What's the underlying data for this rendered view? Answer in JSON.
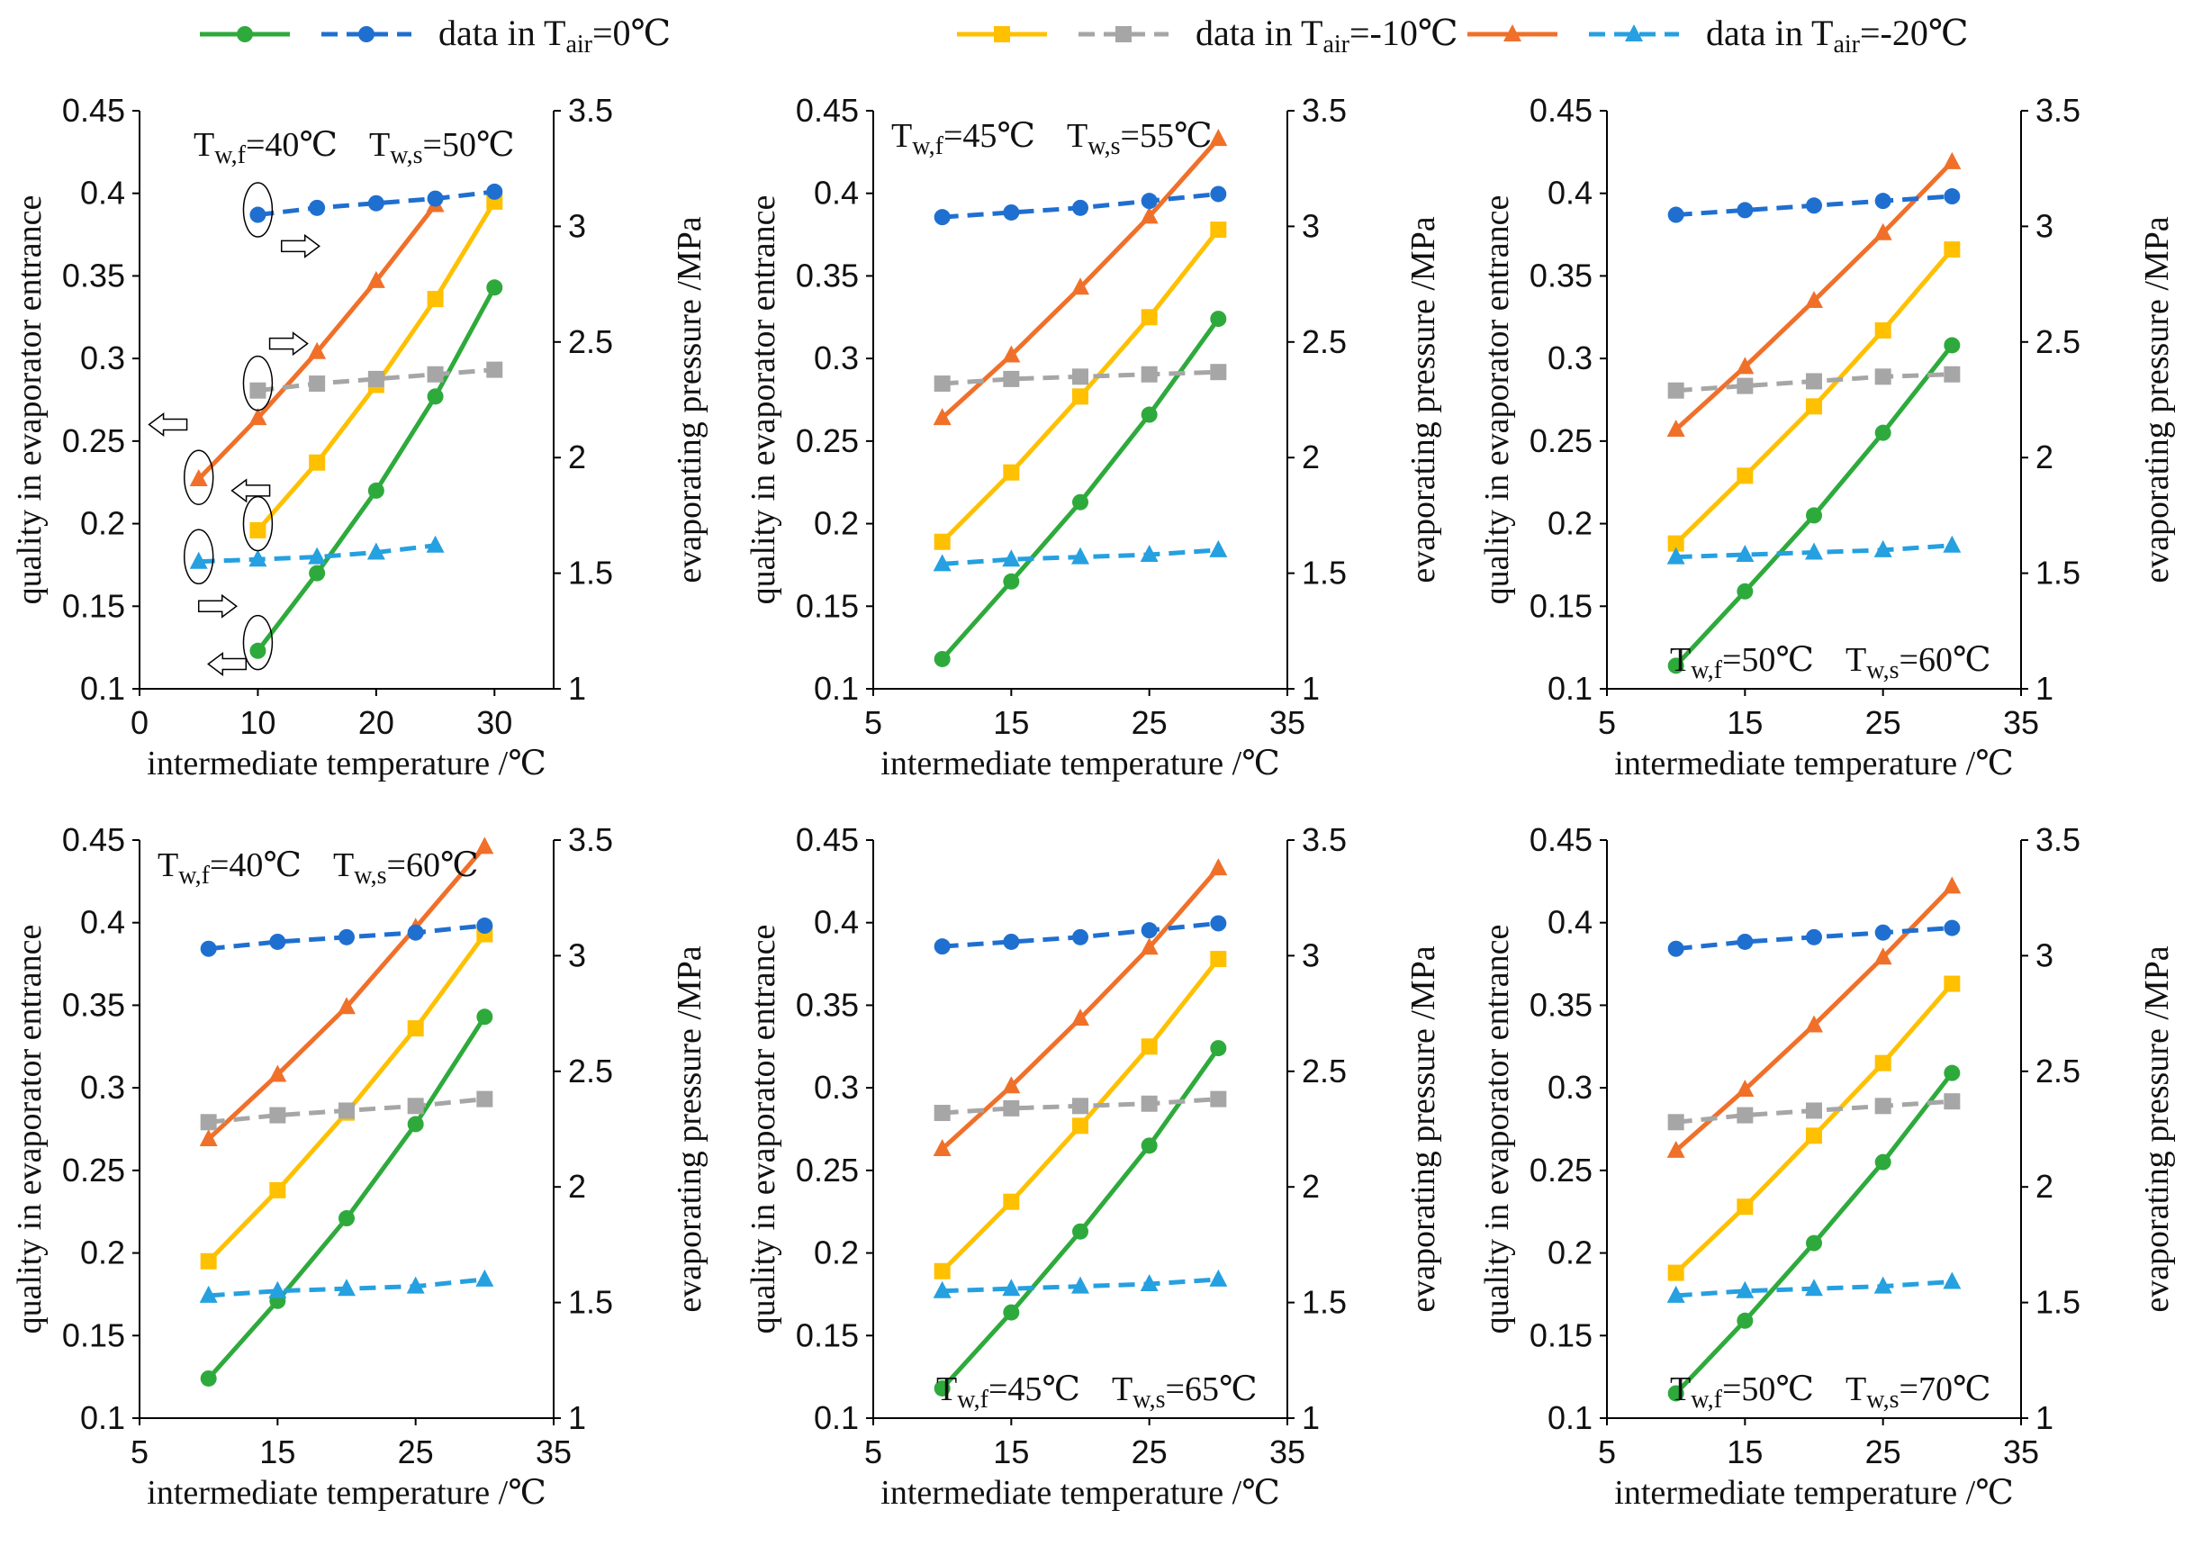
{
  "legend": {
    "entries": [
      {
        "label_prefix": "data in T",
        "label_sub": "air",
        "label_suffix": "=0℃",
        "quality_color": "#2eaa3c",
        "pressure_color": "#1f6fd0",
        "marker": "circle"
      },
      {
        "label_prefix": "data in T",
        "label_sub": "air",
        "label_suffix": "=-10℃",
        "quality_color": "#ffc000",
        "pressure_color": "#a6a6a6",
        "marker": "square"
      },
      {
        "label_prefix": "data in T",
        "label_sub": "air",
        "label_suffix": "=-20℃",
        "quality_color": "#f0702a",
        "pressure_color": "#25a0e0",
        "marker": "triangle"
      }
    ]
  },
  "chart_data": [
    {
      "type": "line",
      "title": "Tw,f=40℃ Tw,s=50℃",
      "annotation": {
        "tf_main": "T",
        "tf_sub": "w,f",
        "tf_val": "=40℃",
        "ts_main": "T",
        "ts_sub": "w,s",
        "ts_val": "=50℃",
        "position": "top-center"
      },
      "xlabel": "intermediate temperature /℃",
      "ylabel": "quality in evaporator entrance",
      "y2label": "evaporating pressure /MPa",
      "xlim": [
        0,
        35
      ],
      "xticks": [
        0,
        10,
        20,
        30
      ],
      "ylim": [
        0.1,
        0.45
      ],
      "yticks": [
        "0.1",
        "0.15",
        "0.2",
        "0.25",
        "0.3",
        "0.35",
        "0.4",
        "0.45"
      ],
      "y2lim": [
        1,
        3.5
      ],
      "y2ticks": [
        "1",
        "1.5",
        "2",
        "2.5",
        "3",
        "3.5"
      ],
      "has_arrows": true,
      "series": [
        {
          "name": "quality Tair=0℃",
          "axis": "left",
          "x": [
            10,
            15,
            20,
            25,
            30
          ],
          "values": [
            0.123,
            0.17,
            0.22,
            0.277,
            0.343
          ]
        },
        {
          "name": "quality Tair=-10℃",
          "axis": "left",
          "x": [
            10,
            15,
            20,
            25,
            30
          ],
          "values": [
            0.196,
            0.237,
            0.284,
            0.336,
            0.395
          ]
        },
        {
          "name": "quality Tair=-20℃",
          "axis": "left",
          "x": [
            5,
            10,
            15,
            20,
            25
          ],
          "values": [
            0.227,
            0.264,
            0.304,
            0.347,
            0.393
          ]
        },
        {
          "name": "pressure Tair=0℃",
          "axis": "right",
          "x": [
            10,
            15,
            20,
            25,
            30
          ],
          "values": [
            3.05,
            3.08,
            3.1,
            3.12,
            3.15
          ]
        },
        {
          "name": "pressure Tair=-10℃",
          "axis": "right",
          "x": [
            10,
            15,
            20,
            25,
            30
          ],
          "values": [
            2.29,
            2.32,
            2.34,
            2.36,
            2.38
          ]
        },
        {
          "name": "pressure Tair=-20℃",
          "axis": "right",
          "x": [
            5,
            10,
            15,
            20,
            25
          ],
          "values": [
            1.55,
            1.56,
            1.57,
            1.59,
            1.62
          ]
        }
      ]
    },
    {
      "type": "line",
      "title": "Tw,f=45℃ Tw,s=55℃",
      "annotation": {
        "tf_main": "T",
        "tf_sub": "w,f",
        "tf_val": "=45℃",
        "ts_main": "T",
        "ts_sub": "w,s",
        "ts_val": "=55℃",
        "position": "top-left"
      },
      "xlabel": "intermediate temperature /℃",
      "ylabel": "quality in evaporator entrance",
      "y2label": "evaporating pressure /MPa",
      "xlim": [
        5,
        35
      ],
      "xticks": [
        5,
        15,
        25,
        35
      ],
      "ylim": [
        0.1,
        0.45
      ],
      "yticks": [
        "0.1",
        "0.15",
        "0.2",
        "0.25",
        "0.3",
        "0.35",
        "0.4",
        "0.45"
      ],
      "y2lim": [
        1,
        3.5
      ],
      "y2ticks": [
        "1",
        "1.5",
        "2",
        "2.5",
        "3",
        "3.5"
      ],
      "has_arrows": false,
      "series": [
        {
          "name": "quality Tair=0℃",
          "axis": "left",
          "x": [
            10,
            15,
            20,
            25,
            30
          ],
          "values": [
            0.118,
            0.165,
            0.213,
            0.266,
            0.324
          ]
        },
        {
          "name": "quality Tair=-10℃",
          "axis": "left",
          "x": [
            10,
            15,
            20,
            25,
            30
          ],
          "values": [
            0.189,
            0.231,
            0.277,
            0.325,
            0.378
          ]
        },
        {
          "name": "quality Tair=-20℃",
          "axis": "left",
          "x": [
            10,
            15,
            20,
            25,
            30
          ],
          "values": [
            0.264,
            0.302,
            0.343,
            0.386,
            0.433
          ]
        },
        {
          "name": "pressure Tair=0℃",
          "axis": "right",
          "x": [
            10,
            15,
            20,
            25,
            30
          ],
          "values": [
            3.04,
            3.06,
            3.08,
            3.11,
            3.14
          ]
        },
        {
          "name": "pressure Tair=-10℃",
          "axis": "right",
          "x": [
            10,
            15,
            20,
            25,
            30
          ],
          "values": [
            2.32,
            2.34,
            2.35,
            2.36,
            2.37
          ]
        },
        {
          "name": "pressure Tair=-20℃",
          "axis": "right",
          "x": [
            10,
            15,
            20,
            25,
            30
          ],
          "values": [
            1.54,
            1.56,
            1.57,
            1.58,
            1.6
          ]
        }
      ]
    },
    {
      "type": "line",
      "title": "Tw,f=50℃ Tw,s=60℃",
      "annotation": {
        "tf_main": "T",
        "tf_sub": "w,f",
        "tf_val": "=50℃",
        "ts_main": "T",
        "ts_sub": "w,s",
        "ts_val": "=60℃",
        "position": "bottom-right"
      },
      "xlabel": "intermediate temperature /℃",
      "ylabel": "quality in evaporator entrance",
      "y2label": "evaporating pressure /MPa",
      "xlim": [
        5,
        35
      ],
      "xticks": [
        5,
        15,
        25,
        35
      ],
      "ylim": [
        0.1,
        0.45
      ],
      "yticks": [
        "0.1",
        "0.15",
        "0.2",
        "0.25",
        "0.3",
        "0.35",
        "0.4",
        "0.45"
      ],
      "y2lim": [
        1,
        3.5
      ],
      "y2ticks": [
        "1",
        "1.5",
        "2",
        "2.5",
        "3",
        "3.5"
      ],
      "has_arrows": false,
      "series": [
        {
          "name": "quality Tair=0℃",
          "axis": "left",
          "x": [
            10,
            15,
            20,
            25,
            30
          ],
          "values": [
            0.114,
            0.159,
            0.205,
            0.255,
            0.308
          ]
        },
        {
          "name": "quality Tair=-10℃",
          "axis": "left",
          "x": [
            10,
            15,
            20,
            25,
            30
          ],
          "values": [
            0.188,
            0.229,
            0.271,
            0.317,
            0.366
          ]
        },
        {
          "name": "quality Tair=-20℃",
          "axis": "left",
          "x": [
            10,
            15,
            20,
            25,
            30
          ],
          "values": [
            0.257,
            0.295,
            0.335,
            0.376,
            0.419
          ]
        },
        {
          "name": "pressure Tair=0℃",
          "axis": "right",
          "x": [
            10,
            15,
            20,
            25,
            30
          ],
          "values": [
            3.05,
            3.07,
            3.09,
            3.11,
            3.13
          ]
        },
        {
          "name": "pressure Tair=-10℃",
          "axis": "right",
          "x": [
            10,
            15,
            20,
            25,
            30
          ],
          "values": [
            2.29,
            2.31,
            2.33,
            2.35,
            2.36
          ]
        },
        {
          "name": "pressure Tair=-20℃",
          "axis": "right",
          "x": [
            10,
            15,
            20,
            25,
            30
          ],
          "values": [
            1.57,
            1.58,
            1.59,
            1.6,
            1.62
          ]
        }
      ]
    },
    {
      "type": "line",
      "title": "Tw,f=40℃ Tw,s=60℃",
      "annotation": {
        "tf_main": "T",
        "tf_sub": "w,f",
        "tf_val": "=40℃",
        "ts_main": "T",
        "ts_sub": "w,s",
        "ts_val": "=60℃",
        "position": "top-left"
      },
      "xlabel": "intermediate temperature /℃",
      "ylabel": "quality in evaporator entrance",
      "y2label": "evaporating pressure /MPa",
      "xlim": [
        5,
        35
      ],
      "xticks": [
        5,
        15,
        25,
        35
      ],
      "ylim": [
        0.1,
        0.45
      ],
      "yticks": [
        "0.1",
        "0.15",
        "0.2",
        "0.25",
        "0.3",
        "0.35",
        "0.4",
        "0.45"
      ],
      "y2lim": [
        1,
        3.5
      ],
      "y2ticks": [
        "1",
        "1.5",
        "2",
        "2.5",
        "3",
        "3.5"
      ],
      "has_arrows": false,
      "series": [
        {
          "name": "quality Tair=0℃",
          "axis": "left",
          "x": [
            10,
            15,
            20,
            25,
            30
          ],
          "values": [
            0.124,
            0.171,
            0.221,
            0.278,
            0.343
          ]
        },
        {
          "name": "quality Tair=-10℃",
          "axis": "left",
          "x": [
            10,
            15,
            20,
            25,
            30
          ],
          "values": [
            0.195,
            0.238,
            0.285,
            0.336,
            0.393
          ]
        },
        {
          "name": "quality Tair=-20℃",
          "axis": "left",
          "x": [
            10,
            15,
            20,
            25,
            30
          ],
          "values": [
            0.269,
            0.308,
            0.349,
            0.397,
            0.446
          ]
        },
        {
          "name": "pressure Tair=0℃",
          "axis": "right",
          "x": [
            10,
            15,
            20,
            25,
            30
          ],
          "values": [
            3.03,
            3.06,
            3.08,
            3.1,
            3.13
          ]
        },
        {
          "name": "pressure Tair=-10℃",
          "axis": "right",
          "x": [
            10,
            15,
            20,
            25,
            30
          ],
          "values": [
            2.28,
            2.31,
            2.33,
            2.35,
            2.38
          ]
        },
        {
          "name": "pressure Tair=-20℃",
          "axis": "right",
          "x": [
            10,
            15,
            20,
            25,
            30
          ],
          "values": [
            1.53,
            1.55,
            1.56,
            1.57,
            1.6
          ]
        }
      ]
    },
    {
      "type": "line",
      "title": "Tw,f=45℃ Tw,s=65℃",
      "annotation": {
        "tf_main": "T",
        "tf_sub": "w,f",
        "tf_val": "=45℃",
        "ts_main": "T",
        "ts_sub": "w,s",
        "ts_val": "=65℃",
        "position": "bottom-right"
      },
      "xlabel": "intermediate temperature /℃",
      "ylabel": "quality in evaporator entrance",
      "y2label": "evaporating pressure /MPa",
      "xlim": [
        5,
        35
      ],
      "xticks": [
        5,
        15,
        25,
        35
      ],
      "ylim": [
        0.1,
        0.45
      ],
      "yticks": [
        "0.1",
        "0.15",
        "0.2",
        "0.25",
        "0.3",
        "0.35",
        "0.4",
        "0.45"
      ],
      "y2lim": [
        1,
        3.5
      ],
      "y2ticks": [
        "1",
        "1.5",
        "2",
        "2.5",
        "3",
        "3.5"
      ],
      "has_arrows": false,
      "series": [
        {
          "name": "quality Tair=0℃",
          "axis": "left",
          "x": [
            10,
            15,
            20,
            25,
            30
          ],
          "values": [
            0.118,
            0.164,
            0.213,
            0.265,
            0.324
          ]
        },
        {
          "name": "quality Tair=-10℃",
          "axis": "left",
          "x": [
            10,
            15,
            20,
            25,
            30
          ],
          "values": [
            0.189,
            0.231,
            0.277,
            0.325,
            0.378
          ]
        },
        {
          "name": "quality Tair=-20℃",
          "axis": "left",
          "x": [
            10,
            15,
            20,
            25,
            30
          ],
          "values": [
            0.263,
            0.301,
            0.342,
            0.385,
            0.433
          ]
        },
        {
          "name": "pressure Tair=0℃",
          "axis": "right",
          "x": [
            10,
            15,
            20,
            25,
            30
          ],
          "values": [
            3.04,
            3.06,
            3.08,
            3.11,
            3.14
          ]
        },
        {
          "name": "pressure Tair=-10℃",
          "axis": "right",
          "x": [
            10,
            15,
            20,
            25,
            30
          ],
          "values": [
            2.32,
            2.34,
            2.35,
            2.36,
            2.38
          ]
        },
        {
          "name": "pressure Tair=-20℃",
          "axis": "right",
          "x": [
            10,
            15,
            20,
            25,
            30
          ],
          "values": [
            1.55,
            1.56,
            1.57,
            1.58,
            1.6
          ]
        }
      ]
    },
    {
      "type": "line",
      "title": "Tw,f=50℃ Tw,s=70℃",
      "annotation": {
        "tf_main": "T",
        "tf_sub": "w,f",
        "tf_val": "=50℃",
        "ts_main": "T",
        "ts_sub": "w,s",
        "ts_val": "=70℃",
        "position": "bottom-right"
      },
      "xlabel": "intermediate temperature /℃",
      "ylabel": "quality in evaporator entrance",
      "y2label": "evaporating pressure /MPa",
      "xlim": [
        5,
        35
      ],
      "xticks": [
        5,
        15,
        25,
        35
      ],
      "ylim": [
        0.1,
        0.45
      ],
      "yticks": [
        "0.1",
        "0.15",
        "0.2",
        "0.25",
        "0.3",
        "0.35",
        "0.4",
        "0.45"
      ],
      "y2lim": [
        1,
        3.5
      ],
      "y2ticks": [
        "1",
        "1.5",
        "2",
        "2.5",
        "3",
        "3.5"
      ],
      "has_arrows": false,
      "series": [
        {
          "name": "quality Tair=0℃",
          "axis": "left",
          "x": [
            10,
            15,
            20,
            25,
            30
          ],
          "values": [
            0.115,
            0.159,
            0.206,
            0.255,
            0.309
          ]
        },
        {
          "name": "quality Tair=-10℃",
          "axis": "left",
          "x": [
            10,
            15,
            20,
            25,
            30
          ],
          "values": [
            0.188,
            0.228,
            0.271,
            0.315,
            0.363
          ]
        },
        {
          "name": "quality Tair=-20℃",
          "axis": "left",
          "x": [
            10,
            15,
            20,
            25,
            30
          ],
          "values": [
            0.262,
            0.299,
            0.338,
            0.379,
            0.422
          ]
        },
        {
          "name": "pressure Tair=0℃",
          "axis": "right",
          "x": [
            10,
            15,
            20,
            25,
            30
          ],
          "values": [
            3.03,
            3.06,
            3.08,
            3.1,
            3.12
          ]
        },
        {
          "name": "pressure Tair=-10℃",
          "axis": "right",
          "x": [
            10,
            15,
            20,
            25,
            30
          ],
          "values": [
            2.28,
            2.31,
            2.33,
            2.35,
            2.37
          ]
        },
        {
          "name": "pressure Tair=-20℃",
          "axis": "right",
          "x": [
            10,
            15,
            20,
            25,
            30
          ],
          "values": [
            1.53,
            1.55,
            1.56,
            1.57,
            1.59
          ]
        }
      ]
    }
  ]
}
